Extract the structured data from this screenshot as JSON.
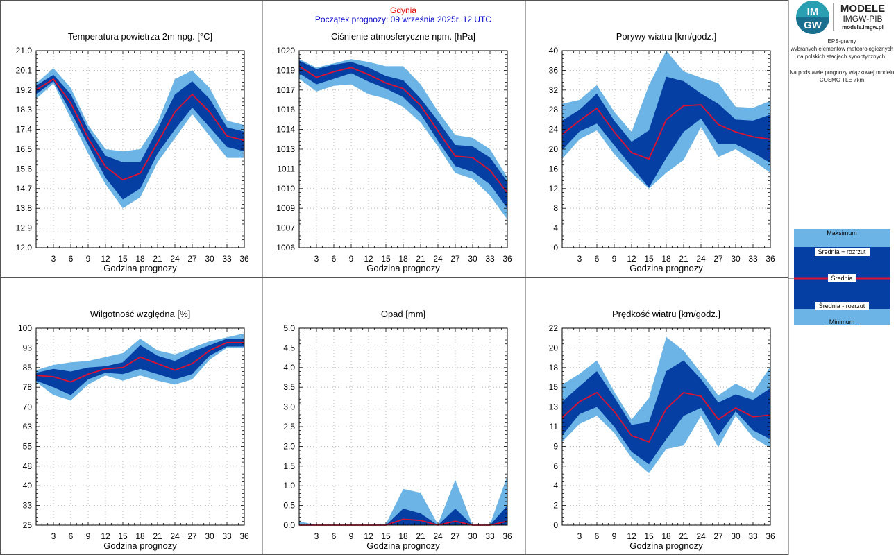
{
  "header": {
    "city": "Gdynia",
    "forecast_start": "Początek prognozy: 09 września 2025r. 12 UTC"
  },
  "colors": {
    "outer_band": "#6cb4e6",
    "inner_band": "#063fa3",
    "mean_line": "#e01030",
    "city_text": "#e00000",
    "start_text": "#0000cc"
  },
  "logo": {
    "mark_top": "IM",
    "mark_bottom": "GW",
    "title": "MODELE",
    "org": "IMGW-PIB",
    "site": "modele.imgw.pl"
  },
  "info": {
    "lines": [
      "EPS-gramy",
      "wybranych elementów meteorologicznych",
      "na polskich stacjach  synoptycznych.",
      "",
      "Na podstawie prognozy wiązkowej modelu",
      "COSMO TLE 7km"
    ]
  },
  "legend": {
    "max": "Maksimum",
    "plus": "Średnia + rozrzut",
    "mean": "Średnia",
    "minus": "Średnia - rozrzut",
    "min": "Minimum"
  },
  "chart_data": [
    {
      "type": "area",
      "title": "Temperatura powietrza 2m npg. [°C]",
      "xlabel": "Godzina prognozy",
      "x": [
        0,
        3,
        6,
        9,
        12,
        15,
        18,
        21,
        24,
        27,
        30,
        33,
        36
      ],
      "xticks": [
        "3",
        "6",
        "9",
        "12",
        "15",
        "18",
        "21",
        "24",
        "27",
        "30",
        "33",
        "36"
      ],
      "ylim": [
        12.0,
        21.0
      ],
      "yticks": [
        "12.0",
        "12.9",
        "13.8",
        "14.7",
        "15.6",
        "16.5",
        "17.4",
        "18.3",
        "19.2",
        "20.1",
        "21.0"
      ],
      "series": [
        {
          "name": "Minimum",
          "values": [
            18.8,
            19.5,
            17.9,
            16.3,
            14.9,
            13.8,
            14.3,
            15.9,
            17.0,
            18.1,
            17.1,
            16.1,
            16.1
          ]
        },
        {
          "name": "Średnia - rozrzut",
          "values": [
            19.0,
            19.6,
            18.2,
            16.7,
            15.2,
            14.2,
            14.7,
            16.3,
            17.4,
            18.4,
            17.5,
            16.6,
            16.4
          ]
        },
        {
          "name": "Średnia",
          "values": [
            19.2,
            19.7,
            18.6,
            17.0,
            15.7,
            15.1,
            15.4,
            16.8,
            18.2,
            19.0,
            18.2,
            17.1,
            16.9
          ]
        },
        {
          "name": "Średnia + rozrzut",
          "values": [
            19.4,
            19.9,
            19.0,
            17.4,
            16.2,
            15.9,
            15.9,
            17.4,
            19.0,
            19.6,
            18.8,
            17.5,
            17.3
          ]
        },
        {
          "name": "Maksimum",
          "values": [
            19.5,
            20.2,
            19.3,
            17.6,
            16.5,
            16.4,
            16.5,
            17.7,
            19.7,
            20.1,
            19.3,
            17.8,
            17.6
          ]
        }
      ]
    },
    {
      "type": "area",
      "title": "Ciśnienie atmosferyczne npm. [hPa]",
      "xlabel": "Godzina prognozy",
      "x": [
        0,
        3,
        6,
        9,
        12,
        15,
        18,
        21,
        24,
        27,
        30,
        33,
        36
      ],
      "xticks": [
        "3",
        "6",
        "9",
        "12",
        "15",
        "18",
        "21",
        "24",
        "27",
        "30",
        "33",
        "36"
      ],
      "ylim": [
        1006,
        1020
      ],
      "yticks": [
        "1006",
        "1007",
        "1009",
        "1010",
        "1011",
        "1013",
        "1014",
        "1016",
        "1017",
        "1019",
        "1020"
      ],
      "series": [
        {
          "name": "Minimum",
          "values": [
            1018.0,
            1017.1,
            1017.5,
            1017.6,
            1016.9,
            1016.6,
            1016.0,
            1014.9,
            1013.2,
            1011.3,
            1010.9,
            1009.7,
            1008.0
          ]
        },
        {
          "name": "Średnia - rozrzut",
          "values": [
            1018.4,
            1017.6,
            1018.0,
            1018.4,
            1017.8,
            1017.3,
            1016.7,
            1015.5,
            1013.6,
            1011.8,
            1011.4,
            1010.5,
            1008.8
          ]
        },
        {
          "name": "Średnia",
          "values": [
            1018.9,
            1018.1,
            1018.5,
            1018.8,
            1018.3,
            1017.7,
            1017.3,
            1016.1,
            1014.3,
            1012.5,
            1012.4,
            1011.5,
            1009.9
          ]
        },
        {
          "name": "Średnia + rozrzut",
          "values": [
            1019.3,
            1018.7,
            1019.0,
            1019.2,
            1018.8,
            1018.2,
            1017.9,
            1016.6,
            1015.0,
            1013.3,
            1013.2,
            1012.4,
            1010.7
          ]
        },
        {
          "name": "Maksimum",
          "values": [
            1019.4,
            1018.8,
            1019.1,
            1019.4,
            1019.2,
            1018.9,
            1018.9,
            1017.6,
            1015.7,
            1014.0,
            1013.8,
            1013.0,
            1011.0
          ]
        }
      ]
    },
    {
      "type": "area",
      "title": "Porywy wiatru [km/godz.]",
      "xlabel": "Godzina prognozy",
      "x": [
        0,
        3,
        6,
        9,
        12,
        15,
        18,
        21,
        24,
        27,
        30,
        33,
        36
      ],
      "xticks": [
        "3",
        "6",
        "9",
        "12",
        "15",
        "18",
        "21",
        "24",
        "27",
        "30",
        "33",
        "36"
      ],
      "ylim": [
        0,
        40
      ],
      "yticks": [
        "0",
        "4",
        "8",
        "12",
        "16",
        "20",
        "24",
        "28",
        "32",
        "36",
        "40"
      ],
      "series": [
        {
          "name": "Minimum",
          "values": [
            18.0,
            22.0,
            23.8,
            19.0,
            15.2,
            12.0,
            15.2,
            17.8,
            24.5,
            18.4,
            20.0,
            17.7,
            15.2
          ]
        },
        {
          "name": "Średnia - rozrzut",
          "values": [
            19.8,
            23.6,
            25.2,
            20.8,
            16.5,
            12.2,
            18.2,
            23.5,
            26.2,
            21.0,
            21.0,
            19.3,
            17.2
          ]
        },
        {
          "name": "Średnia",
          "values": [
            23.0,
            25.8,
            28.3,
            23.5,
            19.3,
            18.0,
            26.0,
            28.8,
            29.0,
            25.0,
            23.5,
            22.5,
            22.0
          ]
        },
        {
          "name": "Średnia + rozrzut",
          "values": [
            25.8,
            28.0,
            31.3,
            25.8,
            21.5,
            23.8,
            34.7,
            33.8,
            31.3,
            29.2,
            26.0,
            25.8,
            27.0
          ]
        },
        {
          "name": "Maksimum",
          "values": [
            29.2,
            30.0,
            33.0,
            27.6,
            23.5,
            33.0,
            40.0,
            35.8,
            34.5,
            33.4,
            28.6,
            28.4,
            29.8
          ]
        }
      ]
    },
    {
      "type": "area",
      "title": "Wilgotność względna [%]",
      "xlabel": "Godzina prognozy",
      "x": [
        0,
        3,
        6,
        9,
        12,
        15,
        18,
        21,
        24,
        27,
        30,
        33,
        36
      ],
      "xticks": [
        "3",
        "6",
        "9",
        "12",
        "15",
        "18",
        "21",
        "24",
        "27",
        "30",
        "33",
        "36"
      ],
      "ylim": [
        25,
        100
      ],
      "yticks": [
        "25",
        "33",
        "40",
        "48",
        "55",
        "63",
        "70",
        "78",
        "85",
        "93",
        "100"
      ],
      "series": [
        {
          "name": "Minimum",
          "values": [
            79.5,
            74.5,
            72.5,
            78.5,
            82.0,
            80.0,
            82.0,
            80.0,
            78.5,
            80.5,
            88.0,
            92.5,
            92.5
          ]
        },
        {
          "name": "Średnia - rozrzut",
          "values": [
            80.0,
            77.5,
            74.5,
            80.5,
            83.0,
            82.5,
            84.5,
            82.5,
            80.5,
            82.5,
            89.5,
            93.0,
            93.0
          ]
        },
        {
          "name": "Średnia",
          "values": [
            82.0,
            81.5,
            79.5,
            82.5,
            84.5,
            85.0,
            89.0,
            86.5,
            84.0,
            86.5,
            91.5,
            94.5,
            94.5
          ]
        },
        {
          "name": "Średnia + rozrzut",
          "values": [
            83.0,
            84.5,
            83.5,
            85.0,
            85.5,
            87.0,
            93.5,
            89.5,
            87.5,
            91.0,
            93.5,
            96.0,
            96.0
          ]
        },
        {
          "name": "Maksimum",
          "values": [
            84.0,
            86.0,
            87.0,
            87.5,
            89.0,
            90.5,
            96.0,
            91.5,
            90.0,
            92.5,
            95.0,
            96.5,
            98.0
          ]
        }
      ]
    },
    {
      "type": "area",
      "title": "Opad [mm]",
      "xlabel": "Godzina prognozy",
      "x": [
        0,
        3,
        6,
        9,
        12,
        15,
        18,
        21,
        24,
        27,
        30,
        33,
        36
      ],
      "xticks": [
        "3",
        "6",
        "9",
        "12",
        "15",
        "18",
        "21",
        "24",
        "27",
        "30",
        "33",
        "36"
      ],
      "ylim": [
        0.0,
        5.0
      ],
      "yticks": [
        "0.0",
        "0.5",
        "1.0",
        "1.5",
        "2.0",
        "2.5",
        "3.0",
        "3.5",
        "4.0",
        "4.5",
        "5.0"
      ],
      "series": [
        {
          "name": "Minimum",
          "values": [
            0,
            0,
            0,
            0,
            0,
            0,
            0,
            0,
            0,
            0,
            0,
            0,
            0
          ]
        },
        {
          "name": "Średnia - rozrzut",
          "values": [
            0,
            0,
            0,
            0,
            0,
            0,
            0,
            0,
            0,
            0,
            0,
            0,
            0
          ]
        },
        {
          "name": "Średnia",
          "values": [
            0,
            0,
            0,
            0,
            0,
            0,
            0.15,
            0.12,
            0,
            0.1,
            0,
            0,
            0.1
          ]
        },
        {
          "name": "Średnia + rozrzut",
          "values": [
            0,
            0,
            0,
            0,
            0,
            0,
            0.42,
            0.3,
            0,
            0.42,
            0,
            0,
            0.5
          ]
        },
        {
          "name": "Maksimum",
          "values": [
            0.1,
            0,
            0,
            0,
            0,
            0.03,
            0.92,
            0.82,
            0.02,
            1.15,
            0,
            0.02,
            1.25
          ]
        }
      ]
    },
    {
      "type": "area",
      "title": "Prędkość wiatru [km/godz.]",
      "xlabel": "Godzina prognozy",
      "x": [
        0,
        3,
        6,
        9,
        12,
        15,
        18,
        21,
        24,
        27,
        30,
        33,
        36
      ],
      "xticks": [
        "3",
        "6",
        "9",
        "12",
        "15",
        "18",
        "21",
        "24",
        "27",
        "30",
        "33",
        "36"
      ],
      "ylim": [
        0,
        22
      ],
      "yticks": [
        "0",
        "2",
        "4",
        "6",
        "9",
        "11",
        "13",
        "15",
        "18",
        "20",
        "22"
      ],
      "series": [
        {
          "name": "Minimum",
          "values": [
            9.3,
            11.3,
            12.2,
            10.3,
            7.5,
            5.8,
            8.5,
            8.9,
            12.2,
            8.7,
            12.2,
            9.8,
            8.6
          ]
        },
        {
          "name": "Średnia - rozrzut",
          "values": [
            10.0,
            12.4,
            13.2,
            11.0,
            8.2,
            6.8,
            9.6,
            12.2,
            13.1,
            10.0,
            12.7,
            10.6,
            9.6
          ]
        },
        {
          "name": "Średnia",
          "values": [
            12.0,
            13.8,
            14.8,
            12.7,
            10.0,
            9.3,
            13.0,
            14.8,
            14.4,
            11.8,
            13.1,
            12.1,
            12.3
          ]
        },
        {
          "name": "Średnia + rozrzut",
          "values": [
            13.8,
            15.5,
            17.2,
            14.3,
            11.2,
            11.5,
            17.2,
            18.4,
            16.3,
            13.7,
            14.6,
            14.0,
            15.3
          ]
        },
        {
          "name": "Maksimum",
          "values": [
            15.7,
            16.9,
            18.4,
            14.9,
            11.8,
            14.2,
            21.0,
            19.5,
            17.0,
            14.5,
            15.8,
            14.8,
            17.7
          ]
        }
      ]
    }
  ]
}
